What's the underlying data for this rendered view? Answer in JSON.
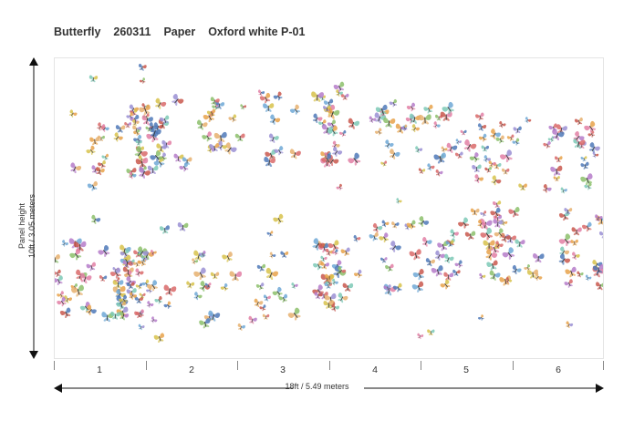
{
  "header": {
    "name": "Butterfly",
    "code": "260311",
    "material": "Paper",
    "colorway": "Oxford white P-01"
  },
  "height_label": {
    "line1": "Panel height",
    "line2": "10ft / 3.05 meters"
  },
  "width_label": "18ft / 5.49 meters",
  "panels": [
    "1",
    "2",
    "3",
    "4",
    "5",
    "6"
  ],
  "palette": [
    "#d96a6a",
    "#e8a24a",
    "#6fa8d6",
    "#8cc06b",
    "#b57bc9",
    "#e27fa5",
    "#4f79b8",
    "#d7c24b",
    "#7cc9b6",
    "#c9584e",
    "#9a8fd4",
    "#e6b06e"
  ]
}
